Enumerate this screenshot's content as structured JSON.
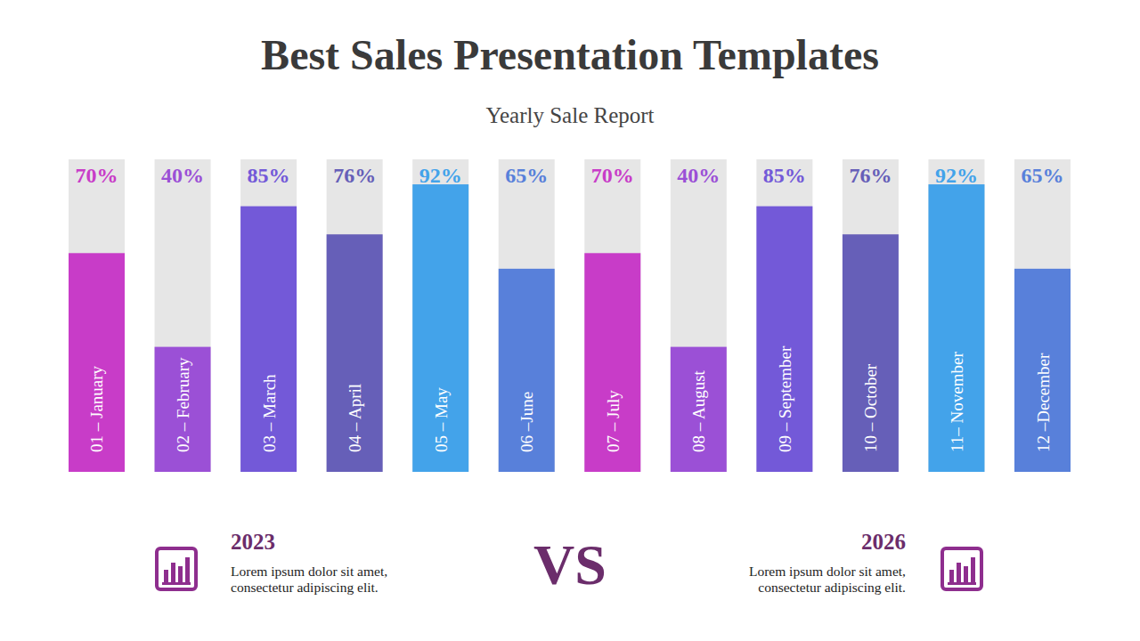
{
  "chart_data": {
    "type": "bar",
    "title": "Best Sales Presentation Templates",
    "subtitle": "Yearly Sale Report",
    "categories": [
      "01 – January",
      "02 – February",
      "03 – March",
      "04 – April",
      "05 – May",
      "06 –June",
      "07 – July",
      "08 – August",
      "09 – September",
      "10 – October",
      "11– November",
      "12 –December"
    ],
    "values": [
      70,
      40,
      85,
      76,
      92,
      65,
      70,
      40,
      85,
      76,
      92,
      65
    ],
    "value_labels": [
      "70%",
      "40%",
      "85%",
      "76%",
      "92%",
      "65%",
      "70%",
      "40%",
      "85%",
      "76%",
      "92%",
      "65%"
    ],
    "colors": [
      "#c83cc8",
      "#9b50d6",
      "#7359d8",
      "#665fb8",
      "#43a3ea",
      "#5880da",
      "#c83cc8",
      "#9b50d6",
      "#7359d8",
      "#665fb8",
      "#43a3ea",
      "#5880da"
    ],
    "ylim": [
      0,
      100
    ],
    "data_labels": true,
    "tick_labels": false
  },
  "footer": {
    "left": {
      "year": "2023",
      "lines": [
        "Lorem ipsum dolor sit amet,",
        "consectetur adipiscing elit."
      ]
    },
    "vs": "VS",
    "right": {
      "year": "2026",
      "lines": [
        "Lorem ipsum dolor sit amet,",
        "consectetur adipiscing elit."
      ]
    }
  }
}
